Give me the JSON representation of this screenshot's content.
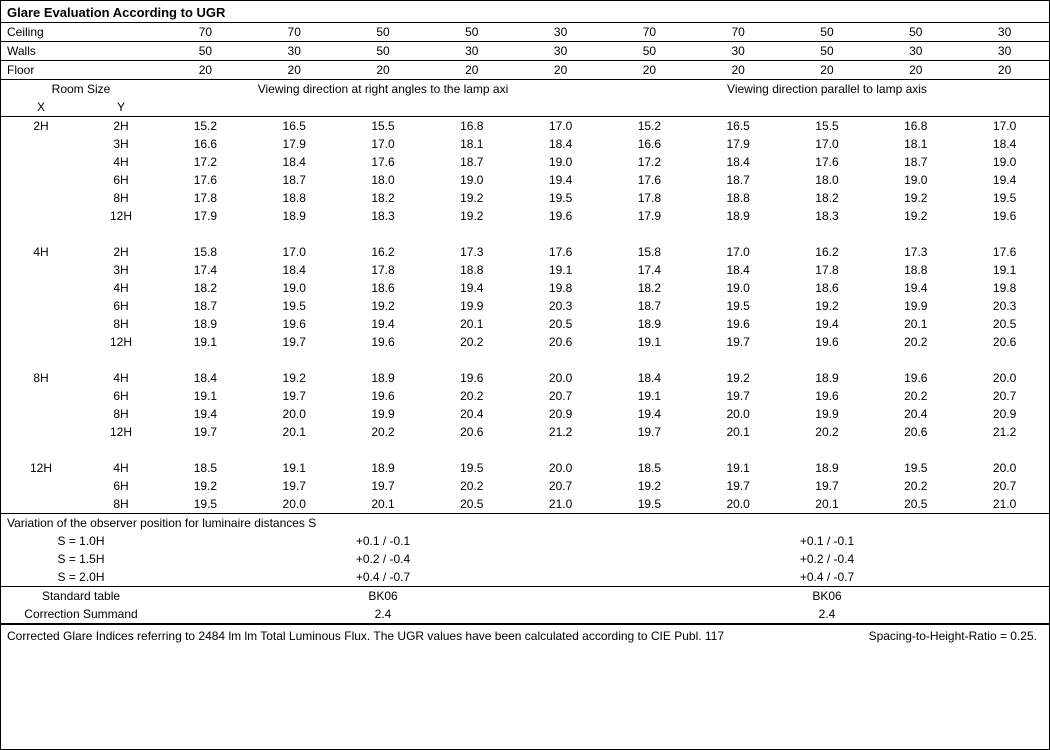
{
  "title": "Glare Evaluation According to UGR",
  "headers": {
    "ceiling_label": "Ceiling",
    "walls_label": "Walls",
    "floor_label": "Floor",
    "ceiling": [
      "70",
      "70",
      "50",
      "50",
      "30",
      "70",
      "70",
      "50",
      "50",
      "30"
    ],
    "walls": [
      "50",
      "30",
      "50",
      "30",
      "30",
      "50",
      "30",
      "50",
      "30",
      "30"
    ],
    "floor": [
      "20",
      "20",
      "20",
      "20",
      "20",
      "20",
      "20",
      "20",
      "20",
      "20"
    ]
  },
  "room_size_label": "Room Size",
  "x_label": "X",
  "y_label": "Y",
  "viewing_right": "Viewing direction at right angles to the lamp axi",
  "viewing_parallel": "Viewing direction parallel to lamp axis",
  "groups": [
    {
      "x": "2H",
      "rows": [
        {
          "y": "2H",
          "l": [
            "15.2",
            "16.5",
            "15.5",
            "16.8",
            "17.0"
          ],
          "r": [
            "15.2",
            "16.5",
            "15.5",
            "16.8",
            "17.0"
          ]
        },
        {
          "y": "3H",
          "l": [
            "16.6",
            "17.9",
            "17.0",
            "18.1",
            "18.4"
          ],
          "r": [
            "16.6",
            "17.9",
            "17.0",
            "18.1",
            "18.4"
          ]
        },
        {
          "y": "4H",
          "l": [
            "17.2",
            "18.4",
            "17.6",
            "18.7",
            "19.0"
          ],
          "r": [
            "17.2",
            "18.4",
            "17.6",
            "18.7",
            "19.0"
          ]
        },
        {
          "y": "6H",
          "l": [
            "17.6",
            "18.7",
            "18.0",
            "19.0",
            "19.4"
          ],
          "r": [
            "17.6",
            "18.7",
            "18.0",
            "19.0",
            "19.4"
          ]
        },
        {
          "y": "8H",
          "l": [
            "17.8",
            "18.8",
            "18.2",
            "19.2",
            "19.5"
          ],
          "r": [
            "17.8",
            "18.8",
            "18.2",
            "19.2",
            "19.5"
          ]
        },
        {
          "y": "12H",
          "l": [
            "17.9",
            "18.9",
            "18.3",
            "19.2",
            "19.6"
          ],
          "r": [
            "17.9",
            "18.9",
            "18.3",
            "19.2",
            "19.6"
          ]
        }
      ]
    },
    {
      "x": "4H",
      "rows": [
        {
          "y": "2H",
          "l": [
            "15.8",
            "17.0",
            "16.2",
            "17.3",
            "17.6"
          ],
          "r": [
            "15.8",
            "17.0",
            "16.2",
            "17.3",
            "17.6"
          ]
        },
        {
          "y": "3H",
          "l": [
            "17.4",
            "18.4",
            "17.8",
            "18.8",
            "19.1"
          ],
          "r": [
            "17.4",
            "18.4",
            "17.8",
            "18.8",
            "19.1"
          ]
        },
        {
          "y": "4H",
          "l": [
            "18.2",
            "19.0",
            "18.6",
            "19.4",
            "19.8"
          ],
          "r": [
            "18.2",
            "19.0",
            "18.6",
            "19.4",
            "19.8"
          ]
        },
        {
          "y": "6H",
          "l": [
            "18.7",
            "19.5",
            "19.2",
            "19.9",
            "20.3"
          ],
          "r": [
            "18.7",
            "19.5",
            "19.2",
            "19.9",
            "20.3"
          ]
        },
        {
          "y": "8H",
          "l": [
            "18.9",
            "19.6",
            "19.4",
            "20.1",
            "20.5"
          ],
          "r": [
            "18.9",
            "19.6",
            "19.4",
            "20.1",
            "20.5"
          ]
        },
        {
          "y": "12H",
          "l": [
            "19.1",
            "19.7",
            "19.6",
            "20.2",
            "20.6"
          ],
          "r": [
            "19.1",
            "19.7",
            "19.6",
            "20.2",
            "20.6"
          ]
        }
      ]
    },
    {
      "x": "8H",
      "rows": [
        {
          "y": "4H",
          "l": [
            "18.4",
            "19.2",
            "18.9",
            "19.6",
            "20.0"
          ],
          "r": [
            "18.4",
            "19.2",
            "18.9",
            "19.6",
            "20.0"
          ]
        },
        {
          "y": "6H",
          "l": [
            "19.1",
            "19.7",
            "19.6",
            "20.2",
            "20.7"
          ],
          "r": [
            "19.1",
            "19.7",
            "19.6",
            "20.2",
            "20.7"
          ]
        },
        {
          "y": "8H",
          "l": [
            "19.4",
            "20.0",
            "19.9",
            "20.4",
            "20.9"
          ],
          "r": [
            "19.4",
            "20.0",
            "19.9",
            "20.4",
            "20.9"
          ]
        },
        {
          "y": "12H",
          "l": [
            "19.7",
            "20.1",
            "20.2",
            "20.6",
            "21.2"
          ],
          "r": [
            "19.7",
            "20.1",
            "20.2",
            "20.6",
            "21.2"
          ]
        }
      ]
    },
    {
      "x": "12H",
      "rows": [
        {
          "y": "4H",
          "l": [
            "18.5",
            "19.1",
            "18.9",
            "19.5",
            "20.0"
          ],
          "r": [
            "18.5",
            "19.1",
            "18.9",
            "19.5",
            "20.0"
          ]
        },
        {
          "y": "6H",
          "l": [
            "19.2",
            "19.7",
            "19.7",
            "20.2",
            "20.7"
          ],
          "r": [
            "19.2",
            "19.7",
            "19.7",
            "20.2",
            "20.7"
          ]
        },
        {
          "y": "8H",
          "l": [
            "19.5",
            "20.0",
            "20.1",
            "20.5",
            "21.0"
          ],
          "r": [
            "19.5",
            "20.0",
            "20.1",
            "20.5",
            "21.0"
          ]
        }
      ]
    }
  ],
  "variation_title": "Variation of the observer position for luminaire distances S",
  "variation_rows": [
    {
      "label": "S = 1.0H",
      "left": "+0.1 / -0.1",
      "right": "+0.1 / -0.1"
    },
    {
      "label": "S = 1.5H",
      "left": "+0.2 / -0.4",
      "right": "+0.2 / -0.4"
    },
    {
      "label": "S = 2.0H",
      "left": "+0.4 / -0.7",
      "right": "+0.4 / -0.7"
    }
  ],
  "standard_table_label": "Standard table",
  "standard_table_left": "BK06",
  "standard_table_right": "BK06",
  "correction_label": "Correction Summand",
  "correction_left": "2.4",
  "correction_right": "2.4",
  "footer_main": "Corrected Glare Indices referring to 2484 lm lm Total Luminous Flux. The UGR values have been calculated according to CIE Publ. 117",
  "footer_spacing": "Spacing-to-Height-Ratio = 0.25.",
  "colors": {
    "border": "#000000",
    "text": "#000000",
    "background": "#ffffff"
  },
  "font_size_pt": 9
}
